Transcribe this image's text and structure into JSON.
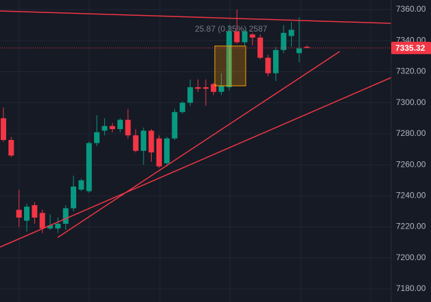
{
  "chart_data": {
    "type": "candlestick",
    "annotation": "25.87 (0.35%) 2587",
    "last_price": 7335.32,
    "up_color": "#089981",
    "down_color": "#f23645",
    "ylim": [
      7171.6,
      7366.2
    ],
    "yticks": [
      {
        "value": 7180,
        "label": "7180.00"
      },
      {
        "value": 7200,
        "label": "7200.00"
      },
      {
        "value": 7220,
        "label": "7220.00"
      },
      {
        "value": 7240,
        "label": "7240.00"
      },
      {
        "value": 7260,
        "label": "7260.00"
      },
      {
        "value": 7280,
        "label": "7280.00"
      },
      {
        "value": 7300,
        "label": "7300.00"
      },
      {
        "value": 7320,
        "label": "7320.00"
      },
      {
        "value": 7340,
        "label": "7340.00"
      },
      {
        "value": 7360,
        "label": "7360.00"
      }
    ],
    "grid": true,
    "open": [
      7290,
      7276,
      7231,
      7224,
      7234,
      7229,
      7219,
      7219,
      7222,
      7232,
      7244,
      7243,
      7274,
      7282,
      7285,
      7283,
      7289,
      7279,
      7269,
      7282,
      7277,
      7261,
      7277,
      7294,
      7300,
      7310,
      7310,
      7312,
      7307,
      7310,
      7346,
      7339,
      7344,
      7342,
      7329,
      7319,
      7334,
      7343,
      7332,
      7336
    ],
    "high": [
      7297,
      7278,
      7244,
      7235,
      7236,
      7231,
      7228,
      7226,
      7234,
      7253,
      7251,
      7275,
      7292,
      7290,
      7287,
      7290,
      7296,
      7283,
      7284,
      7283,
      7279,
      7278,
      7296,
      7301,
      7315,
      7315,
      7315,
      7313,
      7319,
      7350,
      7360,
      7347,
      7345,
      7344,
      7331,
      7336,
      7350,
      7352,
      7355,
      7337
    ],
    "low": [
      7275,
      7265,
      7220,
      7217,
      7222,
      7216,
      7218,
      7216,
      7218,
      7230,
      7243,
      7242,
      7272,
      7279,
      7281,
      7281,
      7277,
      7268,
      7260,
      7262,
      7258,
      7259,
      7276,
      7293,
      7298,
      7307,
      7298,
      7305,
      7305,
      7308,
      7338,
      7337,
      7337,
      7328,
      7317,
      7314,
      7332,
      7336,
      7326,
      7335
    ],
    "close": [
      7276,
      7266,
      7226,
      7233,
      7226,
      7219,
      7221,
      7222,
      7232,
      7246,
      7250,
      7274,
      7281,
      7285,
      7283,
      7289,
      7279,
      7269,
      7282,
      7268,
      7259,
      7277,
      7294,
      7300,
      7310,
      7309,
      7309,
      7307,
      7311,
      7346,
      7339,
      7346,
      7342,
      7329,
      7319,
      7334,
      7345,
      7347,
      7335,
      7335.32
    ]
  }
}
